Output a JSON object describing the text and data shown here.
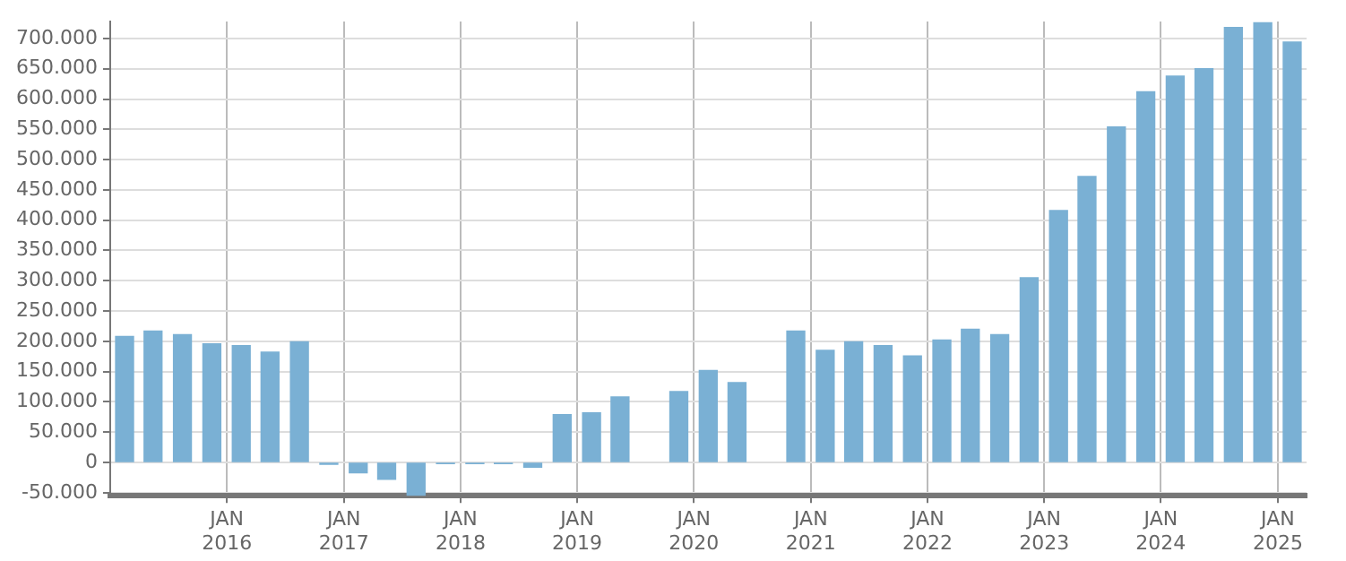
{
  "chart_data": {
    "type": "bar",
    "x": [
      "2015-02-15",
      "2015-05-15",
      "2015-08-15",
      "2015-11-15",
      "2016-02-15",
      "2016-05-15",
      "2016-08-15",
      "2016-11-15",
      "2017-02-15",
      "2017-05-15",
      "2017-08-15",
      "2017-11-15",
      "2018-02-15",
      "2018-05-15",
      "2018-08-15",
      "2018-11-15",
      "2019-02-15",
      "2019-05-15",
      "2019-08-15",
      "2019-11-15",
      "2020-02-15",
      "2020-05-15",
      "2020-08-15",
      "2020-11-15",
      "2021-02-15",
      "2021-05-15",
      "2021-08-15",
      "2021-11-15",
      "2022-02-15",
      "2022-05-15",
      "2022-08-15",
      "2022-11-15",
      "2023-02-15",
      "2023-05-15",
      "2023-08-15",
      "2023-11-15",
      "2024-02-15",
      "2024-05-15",
      "2024-08-15",
      "2024-11-15",
      "2025-02-15"
    ],
    "values": [
      208000,
      217000,
      211000,
      196000,
      193000,
      182000,
      199000,
      -3000,
      -17000,
      -28000,
      -55000,
      -2000,
      -2000,
      -2000,
      -8000,
      79000,
      82000,
      108000,
      null,
      117000,
      152000,
      132000,
      null,
      217000,
      185000,
      199000,
      193000,
      176000,
      202000,
      220000,
      211000,
      305000,
      416000,
      472000,
      554000,
      612000,
      638000,
      650000,
      718000,
      726000,
      694000
    ],
    "color": "#7ab0d4",
    "xlim": [
      "2015-01-01",
      "2025-04-01"
    ],
    "xticks": [
      {
        "value": "2016-01-01",
        "label": "JAN 2016"
      },
      {
        "value": "2017-01-01",
        "label": "JAN 2017"
      },
      {
        "value": "2018-01-01",
        "label": "JAN 2018"
      },
      {
        "value": "2019-01-01",
        "label": "JAN 2019"
      },
      {
        "value": "2020-01-01",
        "label": "JAN 2020"
      },
      {
        "value": "2021-01-01",
        "label": "JAN 2021"
      },
      {
        "value": "2022-01-01",
        "label": "JAN 2022"
      },
      {
        "value": "2023-01-01",
        "label": "JAN 2023"
      },
      {
        "value": "2024-01-01",
        "label": "JAN 2024"
      },
      {
        "value": "2025-01-01",
        "label": "JAN 2025"
      }
    ],
    "ylim": [
      -55000,
      728000
    ],
    "yticks": [
      {
        "value": -50000,
        "label": "-50.000"
      },
      {
        "value": 0,
        "label": "0"
      },
      {
        "value": 50000,
        "label": "50.000"
      },
      {
        "value": 100000,
        "label": "100.000"
      },
      {
        "value": 150000,
        "label": "150.000"
      },
      {
        "value": 200000,
        "label": "200.000"
      },
      {
        "value": 250000,
        "label": "250.000"
      },
      {
        "value": 300000,
        "label": "300.000"
      },
      {
        "value": 350000,
        "label": "350.000"
      },
      {
        "value": 400000,
        "label": "400.000"
      },
      {
        "value": 450000,
        "label": "450.000"
      },
      {
        "value": 500000,
        "label": "500.000"
      },
      {
        "value": 550000,
        "label": "550.000"
      },
      {
        "value": 600000,
        "label": "600.000"
      },
      {
        "value": 650000,
        "label": "650.000"
      },
      {
        "value": 700000,
        "label": "700.000"
      }
    ],
    "grid": true,
    "legend": false
  }
}
